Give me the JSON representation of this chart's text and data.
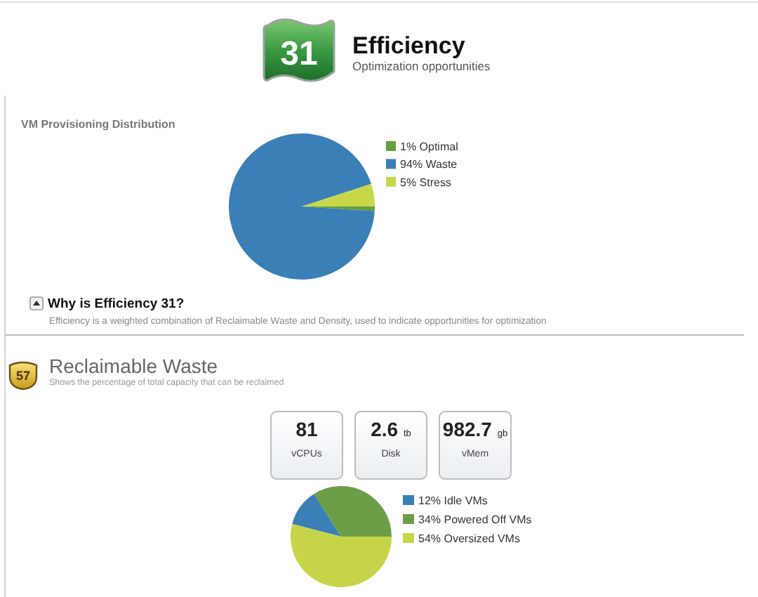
{
  "chart_data": [
    {
      "type": "other",
      "title": "Efficiency",
      "subtitle": "Optimization opportunities",
      "annotations": [
        "31"
      ]
    },
    {
      "type": "pie",
      "title": "VM Provisioning Distribution",
      "categories": [
        "1% Optimal",
        "94% Waste",
        "5% Stress"
      ],
      "values": [
        1,
        94,
        5
      ],
      "colors": [
        "#64a043",
        "#3a7fb6",
        "#c8d74a"
      ],
      "legend": "right",
      "annotations": [
        "Why is Efficiency 31?",
        "Efficiency is a weighted combination of Reclaimable Waste and Density, used to indicate opportunities for optimization"
      ]
    },
    {
      "type": "other",
      "title": "Reclaimable Waste",
      "subtitle": "Shows the percentage of total capacity that can be reclaimed",
      "annotations": [
        "57"
      ]
    },
    {
      "type": "other",
      "annotations": [
        "81",
        "vCPUs",
        "2.6 tb",
        "Disk",
        "982.7 gb",
        "vMem"
      ]
    },
    {
      "type": "pie",
      "categories": [
        "12% Idle VMs",
        "34% Powered Off VMs",
        "54% Oversized VMs"
      ],
      "values": [
        12,
        34,
        54
      ],
      "colors": [
        "#3a7fb6",
        "#6c9e48",
        "#c6d548"
      ],
      "legend": "right"
    }
  ]
}
